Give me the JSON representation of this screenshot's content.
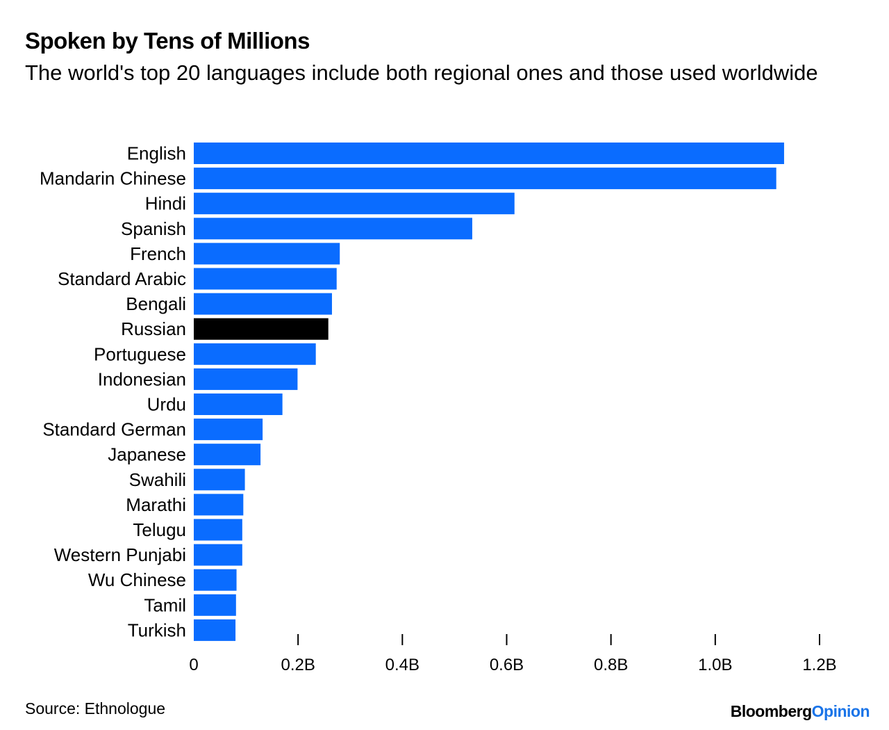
{
  "colors": {
    "bar": "#0a6cff",
    "highlight": "#000000",
    "brand_accent": "#1a74e8"
  },
  "footer": {
    "source": "Source: Ethnologue",
    "brand_part1": "Bloomberg",
    "brand_part2": "Opinion"
  },
  "chart_data": {
    "type": "bar",
    "orientation": "horizontal",
    "title": "Spoken by Tens of Millions",
    "subtitle": "The world's top 20 languages include both regional ones and those used worldwide",
    "xlabel": "",
    "ylabel": "",
    "xlim": [
      0,
      1.2
    ],
    "units": "billions of speakers",
    "ticks": [
      0,
      0.2,
      0.4,
      0.6,
      0.8,
      1.0,
      1.2
    ],
    "tick_labels": [
      "0",
      "0.2B",
      "0.4B",
      "0.6B",
      "0.8B",
      "1.0B",
      "1.2B"
    ],
    "highlight": "Russian",
    "categories": [
      "English",
      "Mandarin Chinese",
      "Hindi",
      "Spanish",
      "French",
      "Standard Arabic",
      "Bengali",
      "Russian",
      "Portuguese",
      "Indonesian",
      "Urdu",
      "Standard German",
      "Japanese",
      "Swahili",
      "Marathi",
      "Telugu",
      "Western Punjabi",
      "Wu Chinese",
      "Tamil",
      "Turkish"
    ],
    "values": [
      1.132,
      1.117,
      0.615,
      0.534,
      0.28,
      0.274,
      0.265,
      0.258,
      0.234,
      0.199,
      0.17,
      0.132,
      0.128,
      0.098,
      0.095,
      0.093,
      0.093,
      0.082,
      0.081,
      0.08
    ]
  }
}
